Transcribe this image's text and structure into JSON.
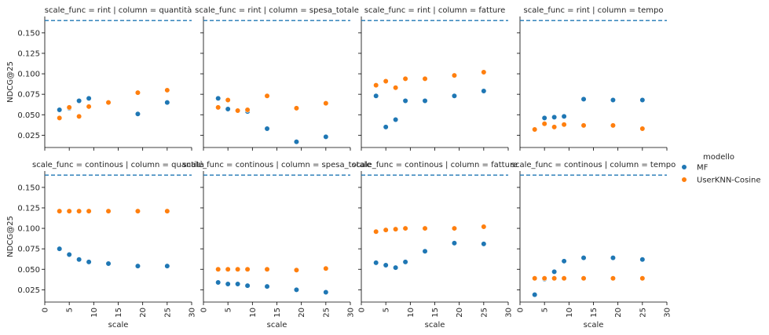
{
  "chart_data": {
    "type": "scatter",
    "facet_grid": {
      "rows": 2,
      "cols": 4
    },
    "xlabel": "scale",
    "ylabel": "NDCG@25",
    "xlim": [
      0,
      30
    ],
    "ylim": [
      0.01,
      0.17
    ],
    "xticks": [
      0,
      5,
      10,
      15,
      20,
      25,
      30
    ],
    "yticks": [
      0.025,
      0.05,
      0.075,
      0.1,
      0.125,
      0.15
    ],
    "ytick_labels": [
      "0.025",
      "0.050",
      "0.075",
      "0.100",
      "0.125",
      "0.150"
    ],
    "reference_line": {
      "y": 0.165,
      "style": "dashed",
      "color": "#1f77b4"
    },
    "legend": {
      "title": "modello",
      "placement": "right",
      "entries": [
        {
          "name": "MF",
          "color": "#1f77b4"
        },
        {
          "name": "UserKNN-Cosine",
          "color": "#ff7f0e"
        }
      ]
    },
    "x": [
      3,
      5,
      7,
      9,
      13,
      19,
      25
    ],
    "panels": [
      {
        "title": "scale_func = rint | column = quantità",
        "series": [
          {
            "name": "MF",
            "values": [
              0.056,
              0.058,
              0.067,
              0.07,
              0.065,
              0.051,
              0.065
            ]
          },
          {
            "name": "UserKNN-Cosine",
            "values": [
              0.046,
              0.059,
              0.048,
              0.06,
              0.065,
              0.077,
              0.08
            ]
          }
        ]
      },
      {
        "title": "scale_func = rint | column = spesa_totale",
        "series": [
          {
            "name": "MF",
            "values": [
              0.07,
              0.057,
              0.055,
              0.054,
              0.033,
              0.017,
              0.023
            ]
          },
          {
            "name": "UserKNN-Cosine",
            "values": [
              0.059,
              0.068,
              0.055,
              0.056,
              0.073,
              0.058,
              0.064
            ]
          }
        ]
      },
      {
        "title": "scale_func = rint | column = fatture",
        "series": [
          {
            "name": "MF",
            "values": [
              0.073,
              0.035,
              0.044,
              0.067,
              0.067,
              0.073,
              0.079
            ]
          },
          {
            "name": "UserKNN-Cosine",
            "values": [
              0.086,
              0.091,
              0.083,
              0.094,
              0.094,
              0.098,
              0.102
            ]
          }
        ]
      },
      {
        "title": "scale_func = rint | column = tempo",
        "series": [
          {
            "name": "MF",
            "values": [
              0.032,
              0.046,
              0.047,
              0.048,
              0.069,
              0.068,
              0.068
            ]
          },
          {
            "name": "UserKNN-Cosine",
            "values": [
              0.032,
              0.039,
              0.035,
              0.038,
              0.037,
              0.037,
              0.033
            ]
          }
        ]
      },
      {
        "title": "scale_func = continous | column = quantità",
        "series": [
          {
            "name": "MF",
            "values": [
              0.075,
              0.068,
              0.062,
              0.059,
              0.057,
              0.054,
              0.054
            ]
          },
          {
            "name": "UserKNN-Cosine",
            "values": [
              0.121,
              0.121,
              0.121,
              0.121,
              0.121,
              0.121,
              0.121
            ]
          }
        ]
      },
      {
        "title": "scale_func = continous | column = spesa_totale",
        "series": [
          {
            "name": "MF",
            "values": [
              0.034,
              0.032,
              0.032,
              0.03,
              0.029,
              0.025,
              0.022
            ]
          },
          {
            "name": "UserKNN-Cosine",
            "values": [
              0.05,
              0.05,
              0.05,
              0.05,
              0.05,
              0.049,
              0.051
            ]
          }
        ]
      },
      {
        "title": "scale_func = continous | column = fatture",
        "series": [
          {
            "name": "MF",
            "values": [
              0.058,
              0.055,
              0.052,
              0.059,
              0.072,
              0.082,
              0.081
            ]
          },
          {
            "name": "UserKNN-Cosine",
            "values": [
              0.096,
              0.098,
              0.099,
              0.1,
              0.1,
              0.1,
              0.102
            ]
          }
        ]
      },
      {
        "title": "scale_func = continous | column = tempo",
        "series": [
          {
            "name": "MF",
            "values": [
              0.019,
              0.038,
              0.047,
              0.06,
              0.064,
              0.064,
              0.062
            ]
          },
          {
            "name": "UserKNN-Cosine",
            "values": [
              0.039,
              0.039,
              0.039,
              0.039,
              0.039,
              0.039,
              0.039
            ]
          }
        ]
      }
    ]
  }
}
